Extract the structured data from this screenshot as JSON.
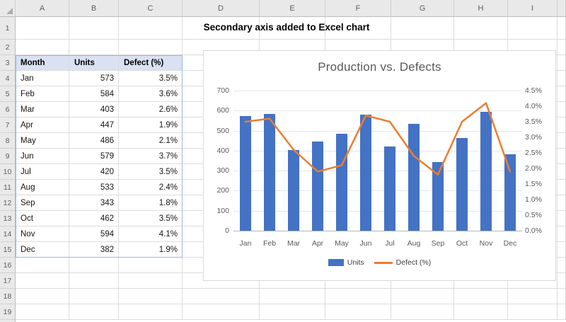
{
  "sheet": {
    "banner_title": "Secondary axis added to Excel chart",
    "column_headers": [
      "A",
      "B",
      "C",
      "D",
      "E",
      "F",
      "G",
      "H",
      "I"
    ],
    "row_numbers": [
      "1",
      "2",
      "3",
      "4",
      "5",
      "6",
      "7",
      "8",
      "9",
      "10",
      "11",
      "12",
      "13",
      "14",
      "15",
      "16",
      "17",
      "18",
      "19"
    ],
    "table": {
      "headers": [
        "Month",
        "Units",
        "Defect (%)"
      ],
      "rows": [
        [
          "Jan",
          "573",
          "3.5%"
        ],
        [
          "Feb",
          "584",
          "3.6%"
        ],
        [
          "Mar",
          "403",
          "2.6%"
        ],
        [
          "Apr",
          "447",
          "1.9%"
        ],
        [
          "May",
          "486",
          "2.1%"
        ],
        [
          "Jun",
          "579",
          "3.7%"
        ],
        [
          "Jul",
          "420",
          "3.5%"
        ],
        [
          "Aug",
          "533",
          "2.4%"
        ],
        [
          "Sep",
          "343",
          "1.8%"
        ],
        [
          "Oct",
          "462",
          "3.5%"
        ],
        [
          "Nov",
          "594",
          "4.1%"
        ],
        [
          "Dec",
          "382",
          "1.9%"
        ]
      ],
      "header_fill": "#D9E1F2",
      "border_color": "#9FB6DC"
    }
  },
  "icons": {
    "select_all": "triangle-icon"
  },
  "chart_data": {
    "type": "combo",
    "title": "Production vs. Defects",
    "categories": [
      "Jan",
      "Feb",
      "Mar",
      "Apr",
      "May",
      "Jun",
      "Jul",
      "Aug",
      "Sep",
      "Oct",
      "Nov",
      "Dec"
    ],
    "series": [
      {
        "name": "Units",
        "type": "bar",
        "axis": "left",
        "color": "#4472C4",
        "values": [
          573,
          584,
          403,
          447,
          486,
          579,
          420,
          533,
          343,
          462,
          594,
          382
        ]
      },
      {
        "name": "Defect (%)",
        "type": "line",
        "axis": "right",
        "color": "#ED7D31",
        "values": [
          3.5,
          3.6,
          2.6,
          1.9,
          2.1,
          3.7,
          3.5,
          2.4,
          1.8,
          3.5,
          4.1,
          1.9
        ]
      }
    ],
    "left_axis": {
      "min": 0,
      "max": 700,
      "step": 100,
      "tick_labels": [
        "700",
        "600",
        "500",
        "400",
        "300",
        "200",
        "100",
        "0"
      ]
    },
    "right_axis": {
      "min": 0,
      "max": 4.5,
      "step": 0.5,
      "tick_labels": [
        "4.5%",
        "4.0%",
        "3.5%",
        "3.0%",
        "2.5%",
        "2.0%",
        "1.5%",
        "1.0%",
        "0.5%",
        "0.0%"
      ]
    },
    "legend": [
      {
        "label": "Units",
        "swatch": "bar"
      },
      {
        "label": "Defect (%)",
        "swatch": "line"
      }
    ],
    "grid": true,
    "legend_position": "bottom"
  }
}
